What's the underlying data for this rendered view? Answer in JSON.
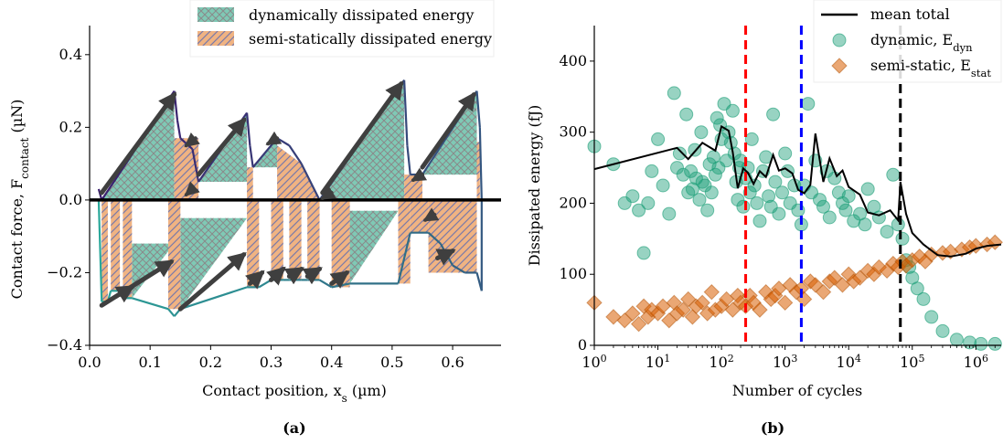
{
  "chart_data": [
    {
      "type": "area",
      "panel_label": "(a)",
      "xlabel": "Contact position, x",
      "xlabel_sub": "s",
      "xlabel_unit": " (µm)",
      "ylabel": "Contact force, F",
      "ylabel_sub": "contact",
      "ylabel_unit": " (µN)",
      "xlim": [
        0.0,
        0.68
      ],
      "ylim": [
        -0.4,
        0.48
      ],
      "xticks": [
        0.0,
        0.1,
        0.2,
        0.3,
        0.4,
        0.5,
        0.6
      ],
      "xtick_labels": [
        "0.0",
        "0.1",
        "0.2",
        "0.3",
        "0.4",
        "0.5",
        "0.6"
      ],
      "yticks": [
        -0.4,
        -0.2,
        0.0,
        0.2,
        0.4
      ],
      "ytick_labels": [
        "−0.4",
        "−0.2",
        "0.0",
        "0.2",
        "0.4"
      ],
      "legend": {
        "placement": "top-right",
        "entries": [
          {
            "label": "dynamically dissipated energy",
            "fill": "#7fc9b5",
            "hatch": "cross"
          },
          {
            "label": "semi-statically dissipated energy",
            "fill": "#f0b382",
            "hatch": "diagonal"
          }
        ]
      },
      "colors": {
        "dynamic": "#7fc9b5",
        "static": "#f0b382",
        "hatch_dynamic": "#8a8a8a",
        "hatch_static": "#7a7aa8",
        "arrow": "#3f3f3f",
        "curve_start": "#3b1f6e",
        "curve_end": "#2aa89a"
      },
      "dynamic_regions_top": [
        {
          "x": [
            0.02,
            0.14,
            0.14
          ],
          "y": [
            0.0,
            0.0,
            0.3
          ]
        },
        {
          "x": [
            0.14,
            0.17,
            0.17
          ],
          "y": [
            0.0,
            0.0,
            0.17
          ]
        },
        {
          "x": [
            0.18,
            0.26,
            0.26
          ],
          "y": [
            0.05,
            0.05,
            0.24
          ]
        },
        {
          "x": [
            0.27,
            0.31,
            0.31
          ],
          "y": [
            0.09,
            0.09,
            0.17
          ]
        },
        {
          "x": [
            0.38,
            0.52,
            0.52
          ],
          "y": [
            0.0,
            0.0,
            0.33
          ]
        },
        {
          "x": [
            0.55,
            0.64,
            0.64
          ],
          "y": [
            0.07,
            0.07,
            0.3
          ]
        }
      ],
      "static_regions_top": [
        {
          "x": [
            0.14,
            0.18,
            0.18,
            0.14
          ],
          "y": [
            0.17,
            0.17,
            0.0,
            0.0
          ]
        },
        {
          "x": [
            0.26,
            0.27,
            0.27,
            0.26
          ],
          "y": [
            0.09,
            0.09,
            0.0,
            0.0
          ]
        },
        {
          "x": [
            0.31,
            0.35,
            0.38,
            0.31
          ],
          "y": [
            0.15,
            0.1,
            0.0,
            0.0
          ]
        },
        {
          "x": [
            0.52,
            0.55,
            0.55,
            0.52
          ],
          "y": [
            0.07,
            0.07,
            0.0,
            0.0
          ]
        },
        {
          "x": [
            0.64,
            0.645,
            0.645,
            0.64
          ],
          "y": [
            0.16,
            0.16,
            0.0,
            0.0
          ]
        }
      ],
      "dynamic_regions_bottom": [
        {
          "x": [
            0.07,
            0.14,
            0.07
          ],
          "y": [
            -0.12,
            -0.12,
            -0.27
          ]
        },
        {
          "x": [
            0.15,
            0.26,
            0.15
          ],
          "y": [
            -0.05,
            -0.05,
            -0.3
          ]
        },
        {
          "x": [
            0.43,
            0.51,
            0.43
          ],
          "y": [
            -0.03,
            -0.03,
            -0.23
          ]
        },
        {
          "x": [
            0.56,
            0.58,
            0.56
          ],
          "y": [
            -0.08,
            -0.08,
            -0.12
          ]
        }
      ],
      "static_regions_bottom": [
        {
          "x": [
            0.02,
            0.03,
            0.03,
            0.02
          ],
          "y": [
            0.0,
            0.0,
            -0.28,
            -0.28
          ]
        },
        {
          "x": [
            0.035,
            0.05,
            0.05,
            0.035
          ],
          "y": [
            0.0,
            0.0,
            -0.25,
            -0.25
          ]
        },
        {
          "x": [
            0.055,
            0.07,
            0.07,
            0.055
          ],
          "y": [
            0.0,
            0.0,
            -0.27,
            -0.27
          ]
        },
        {
          "x": [
            0.13,
            0.15,
            0.15,
            0.13
          ],
          "y": [
            0.0,
            0.0,
            -0.3,
            -0.3
          ]
        },
        {
          "x": [
            0.26,
            0.28,
            0.28,
            0.26
          ],
          "y": [
            0.0,
            0.0,
            -0.24,
            -0.24
          ]
        },
        {
          "x": [
            0.3,
            0.32,
            0.32,
            0.3
          ],
          "y": [
            0.0,
            0.0,
            -0.22,
            -0.22
          ]
        },
        {
          "x": [
            0.33,
            0.35,
            0.35,
            0.33
          ],
          "y": [
            0.0,
            0.0,
            -0.22,
            -0.22
          ]
        },
        {
          "x": [
            0.36,
            0.38,
            0.38,
            0.36
          ],
          "y": [
            0.0,
            0.0,
            -0.22,
            -0.22
          ]
        },
        {
          "x": [
            0.4,
            0.43,
            0.43,
            0.4
          ],
          "y": [
            0.0,
            0.0,
            -0.24,
            -0.24
          ]
        },
        {
          "x": [
            0.51,
            0.53,
            0.53,
            0.51
          ],
          "y": [
            0.0,
            0.0,
            -0.23,
            -0.23
          ]
        },
        {
          "x": [
            0.53,
            0.56,
            0.56,
            0.53
          ],
          "y": [
            0.0,
            0.0,
            -0.09,
            -0.09
          ]
        },
        {
          "x": [
            0.56,
            0.64,
            0.64,
            0.56
          ],
          "y": [
            0.0,
            0.0,
            -0.2,
            -0.2
          ]
        }
      ],
      "contact_curve": {
        "x": [
          0.015,
          0.02,
          0.14,
          0.145,
          0.15,
          0.17,
          0.18,
          0.26,
          0.265,
          0.27,
          0.31,
          0.33,
          0.35,
          0.38,
          0.52,
          0.525,
          0.53,
          0.55,
          0.64,
          0.645,
          0.648,
          0.648,
          0.64,
          0.62,
          0.6,
          0.58,
          0.56,
          0.53,
          0.51,
          0.43,
          0.4,
          0.38,
          0.36,
          0.35,
          0.33,
          0.32,
          0.3,
          0.28,
          0.26,
          0.15,
          0.14,
          0.13,
          0.07,
          0.055,
          0.05,
          0.035,
          0.03,
          0.02,
          0.015
        ],
        "y": [
          0.03,
          0.0,
          0.3,
          0.22,
          0.17,
          0.14,
          0.05,
          0.24,
          0.15,
          0.09,
          0.17,
          0.15,
          0.1,
          0.0,
          0.33,
          0.15,
          0.07,
          0.07,
          0.3,
          0.2,
          0.0,
          -0.25,
          -0.2,
          -0.2,
          -0.18,
          -0.12,
          -0.09,
          -0.09,
          -0.23,
          -0.23,
          -0.24,
          -0.22,
          -0.22,
          -0.22,
          -0.22,
          -0.22,
          -0.22,
          -0.24,
          -0.24,
          -0.3,
          -0.32,
          -0.3,
          -0.27,
          -0.27,
          -0.25,
          -0.25,
          -0.28,
          -0.28,
          0.0
        ]
      },
      "loading_arrows": [
        {
          "x": [
            0.02,
            0.135
          ],
          "y": [
            -0.29,
            -0.17
          ]
        },
        {
          "x": [
            0.15,
            0.255
          ],
          "y": [
            -0.3,
            -0.15
          ]
        },
        {
          "x": [
            0.02,
            0.14
          ],
          "y": [
            0.02,
            0.29
          ]
        },
        {
          "x": [
            0.18,
            0.255
          ],
          "y": [
            0.07,
            0.22
          ]
        },
        {
          "x": [
            0.385,
            0.515
          ],
          "y": [
            0.02,
            0.32
          ]
        },
        {
          "x": [
            0.55,
            0.635
          ],
          "y": [
            0.09,
            0.29
          ]
        },
        {
          "x": [
            0.05,
            0.07
          ],
          "y": [
            -0.26,
            -0.24
          ]
        },
        {
          "x": [
            0.265,
            0.285
          ],
          "y": [
            -0.23,
            -0.2
          ]
        },
        {
          "x": [
            0.3,
            0.32
          ],
          "y": [
            -0.22,
            -0.19
          ]
        },
        {
          "x": [
            0.33,
            0.35
          ],
          "y": [
            -0.21,
            -0.19
          ]
        },
        {
          "x": [
            0.36,
            0.38
          ],
          "y": [
            -0.21,
            -0.19
          ]
        },
        {
          "x": [
            0.4,
            0.425
          ],
          "y": [
            -0.23,
            -0.2
          ]
        },
        {
          "x": [
            0.575,
            0.6
          ],
          "y": [
            -0.16,
            -0.14
          ]
        }
      ],
      "unloading_arrows": [
        {
          "x": [
            0.175,
            0.16
          ],
          "y": [
            0.17,
            0.15
          ]
        },
        {
          "x": [
            0.31,
            0.295
          ],
          "y": [
            0.17,
            0.155
          ]
        },
        {
          "x": [
            0.55,
            0.535
          ],
          "y": [
            0.07,
            0.055
          ]
        },
        {
          "x": [
            0.17,
            0.16
          ],
          "y": [
            0.03,
            0.015
          ]
        },
        {
          "x": [
            0.4,
            0.385
          ],
          "y": [
            0.02,
            0.005
          ]
        },
        {
          "x": [
            0.57,
            0.555
          ],
          "y": [
            -0.04,
            -0.055
          ]
        }
      ]
    },
    {
      "type": "scatter",
      "panel_label": "(b)",
      "xlabel": "Number of cycles",
      "ylabel": "Dissipated energy (fJ)",
      "xscale": "log",
      "xlim": [
        1,
        2500000
      ],
      "ylim": [
        0,
        450
      ],
      "xticks_exp": [
        0,
        1,
        2,
        3,
        4,
        5,
        6
      ],
      "yticks": [
        0,
        100,
        200,
        300,
        400
      ],
      "ytick_labels": [
        "0",
        "100",
        "200",
        "300",
        "400"
      ],
      "legend": {
        "placement": "top-right",
        "entries": [
          {
            "label": "mean total",
            "marker": "line",
            "color": "#000000"
          },
          {
            "label": "dynamic, E",
            "sub": "dyn",
            "marker": "circle",
            "color": "#1b9e77"
          },
          {
            "label": "semi-static, E",
            "sub": "stat",
            "marker": "diamond",
            "color": "#d95f02"
          }
        ]
      },
      "vlines": [
        {
          "x": 240,
          "color": "#ff0000"
        },
        {
          "x": 1800,
          "color": "#0000ff"
        },
        {
          "x": 65000,
          "color": "#000000"
        }
      ],
      "mean_total": {
        "x": [
          1,
          20,
          30,
          50,
          80,
          100,
          130,
          150,
          180,
          220,
          260,
          320,
          400,
          500,
          650,
          800,
          1000,
          1300,
          1600,
          2000,
          2500,
          3000,
          4000,
          5000,
          6500,
          8000,
          10000,
          15000,
          20000,
          30000,
          45000,
          60000,
          65000,
          80000,
          100000,
          150000,
          250000,
          400000,
          700000,
          1000000,
          1500000,
          2500000
        ],
        "y": [
          248,
          278,
          262,
          285,
          274,
          308,
          302,
          272,
          221,
          249,
          243,
          227,
          245,
          237,
          268,
          246,
          249,
          242,
          219,
          214,
          226,
          298,
          230,
          263,
          238,
          246,
          223,
          212,
          187,
          183,
          190,
          176,
          230,
          185,
          158,
          142,
          127,
          125,
          129,
          136,
          140,
          142
        ]
      },
      "dynamic_points": {
        "x": [
          1,
          2,
          3,
          4,
          5,
          6,
          7,
          8,
          10,
          12,
          15,
          18,
          20,
          22,
          25,
          28,
          30,
          33,
          35,
          38,
          40,
          45,
          48,
          50,
          55,
          60,
          65,
          70,
          75,
          80,
          85,
          90,
          95,
          100,
          110,
          120,
          130,
          140,
          150,
          160,
          170,
          180,
          190,
          200,
          220,
          240,
          260,
          280,
          300,
          330,
          360,
          400,
          450,
          500,
          550,
          600,
          650,
          700,
          800,
          900,
          1000,
          1100,
          1200,
          1400,
          1600,
          1800,
          2000,
          2300,
          2600,
          3000,
          3500,
          4000,
          4500,
          5000,
          6000,
          7000,
          8000,
          9000,
          10000,
          12000,
          15000,
          18000,
          20000,
          25000,
          30000,
          40000,
          50000,
          60000,
          70000,
          80000,
          90000,
          100000,
          120000,
          150000,
          200000,
          300000,
          500000,
          800000,
          1200000,
          2000000
        ],
        "y": [
          280,
          255,
          200,
          210,
          190,
          130,
          200,
          245,
          290,
          225,
          185,
          355,
          250,
          270,
          240,
          325,
          215,
          245,
          220,
          275,
          235,
          205,
          300,
          230,
          225,
          190,
          255,
          215,
          265,
          240,
          320,
          250,
          310,
          290,
          340,
          260,
          300,
          285,
          330,
          270,
          230,
          205,
          250,
          260,
          195,
          235,
          250,
          215,
          290,
          225,
          200,
          175,
          245,
          265,
          210,
          195,
          325,
          230,
          185,
          215,
          270,
          245,
          200,
          225,
          190,
          170,
          225,
          340,
          215,
          260,
          205,
          195,
          245,
          180,
          235,
          215,
          200,
          190,
          210,
          175,
          185,
          170,
          220,
          195,
          180,
          160,
          240,
          170,
          150,
          120,
          110,
          95,
          80,
          65,
          40,
          20,
          8,
          4,
          2,
          2
        ]
      },
      "static_points": {
        "x": [
          1,
          2,
          3,
          4,
          5,
          6,
          7,
          8,
          10,
          12,
          15,
          18,
          20,
          25,
          30,
          35,
          40,
          50,
          60,
          70,
          80,
          100,
          120,
          150,
          180,
          200,
          240,
          280,
          320,
          400,
          500,
          600,
          700,
          800,
          1000,
          1200,
          1500,
          1800,
          2000,
          2500,
          3000,
          4000,
          5000,
          6000,
          8000,
          10000,
          12000,
          15000,
          20000,
          25000,
          30000,
          40000,
          50000,
          60000,
          70000,
          80000,
          100000,
          130000,
          160000,
          200000,
          300000,
          400000,
          600000,
          800000,
          1000000,
          1500000,
          2000000
        ],
        "y": [
          60,
          40,
          35,
          45,
          30,
          55,
          40,
          50,
          45,
          55,
          35,
          60,
          45,
          50,
          65,
          40,
          55,
          60,
          45,
          75,
          50,
          55,
          65,
          50,
          70,
          60,
          55,
          70,
          60,
          50,
          75,
          65,
          70,
          80,
          60,
          85,
          75,
          80,
          65,
          90,
          85,
          75,
          90,
          95,
          85,
          100,
          90,
          95,
          105,
          100,
          110,
          105,
          115,
          110,
          118,
          112,
          120,
          125,
          118,
          128,
          130,
          132,
          135,
          138,
          140,
          142,
          145
        ]
      }
    }
  ]
}
